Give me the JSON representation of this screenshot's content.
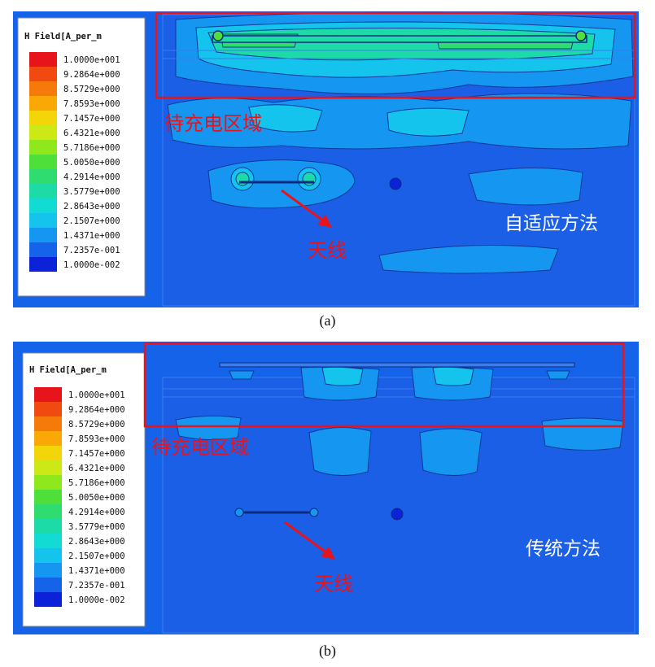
{
  "panels": [
    {
      "id": "a",
      "caption": "(a)",
      "method_label": "自适应方法",
      "region_label": "待充电区域",
      "antenna_label": "天线"
    },
    {
      "id": "b",
      "caption": "(b)",
      "method_label": "传统方法",
      "region_label": "待充电区域",
      "antenna_label": "天线"
    }
  ],
  "legend": {
    "title": "H Field[A_per_m",
    "entries": [
      {
        "label": "1.0000e+001",
        "color": "#e8141c"
      },
      {
        "label": "9.2864e+000",
        "color": "#f04a10"
      },
      {
        "label": "8.5729e+000",
        "color": "#f57a0a"
      },
      {
        "label": "7.8593e+000",
        "color": "#f9a806"
      },
      {
        "label": "7.1457e+000",
        "color": "#f3d60a"
      },
      {
        "label": "6.4321e+000",
        "color": "#cde915"
      },
      {
        "label": "5.7186e+000",
        "color": "#8ee81c"
      },
      {
        "label": "5.0050e+000",
        "color": "#4fdf3a"
      },
      {
        "label": "4.2914e+000",
        "color": "#2edc70"
      },
      {
        "label": "3.5779e+000",
        "color": "#1cdba6"
      },
      {
        "label": "2.8643e+000",
        "color": "#12dbd4"
      },
      {
        "label": "2.1507e+000",
        "color": "#14c4ec"
      },
      {
        "label": "1.4371e+000",
        "color": "#1596f0"
      },
      {
        "label": "7.2357e-001",
        "color": "#1563e8"
      },
      {
        "label": "1.0000e-002",
        "color": "#0c22d8"
      }
    ]
  },
  "colors": {
    "background_field": "#1563e8",
    "low_field": "#1b55e0",
    "contour_mid": "#1596f0",
    "contour_high": "#14c4ec",
    "contour_peak": "#1cdba6",
    "annotation_red": "#e8141c"
  }
}
